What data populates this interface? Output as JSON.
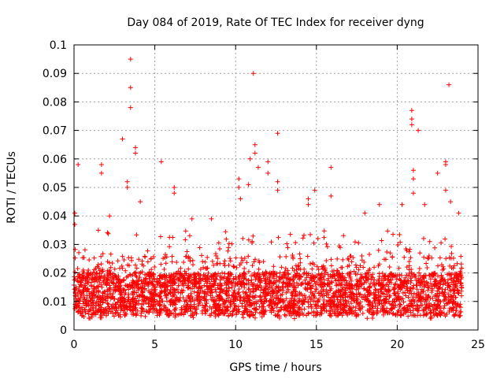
{
  "chart_data": {
    "type": "scatter",
    "title": "Day 084 of 2019, Rate Of TEC Index for receiver dyng",
    "xlabel": "GPS time / hours",
    "ylabel": "ROTI / TECUs",
    "xlim": [
      0,
      25
    ],
    "ylim": [
      0,
      0.1
    ],
    "grid": true,
    "marker": "+",
    "series_color": "#ff0000",
    "x_ticks": [
      0,
      5,
      10,
      15,
      20,
      25
    ],
    "x_tick_labels": [
      "0",
      "5",
      "10",
      "15",
      "20",
      "25"
    ],
    "y_ticks": [
      0,
      0.01,
      0.02,
      0.03,
      0.04,
      0.05,
      0.06,
      0.07,
      0.08,
      0.09,
      0.1
    ],
    "y_tick_labels": [
      "0",
      "0.01",
      "0.02",
      "0.03",
      "0.04",
      "0.05",
      "0.06",
      "0.07",
      "0.08",
      "0.09",
      "0.1"
    ],
    "data_range_x": [
      0,
      24
    ],
    "baseline_band": [
      0.005,
      0.02
    ],
    "outliers": [
      {
        "x": 0.05,
        "y": 0.041
      },
      {
        "x": 0.05,
        "y": 0.037
      },
      {
        "x": 0.25,
        "y": 0.058
      },
      {
        "x": 1.7,
        "y": 0.058
      },
      {
        "x": 1.7,
        "y": 0.055
      },
      {
        "x": 2.2,
        "y": 0.04
      },
      {
        "x": 3.0,
        "y": 0.067
      },
      {
        "x": 3.3,
        "y": 0.052
      },
      {
        "x": 3.3,
        "y": 0.05
      },
      {
        "x": 3.5,
        "y": 0.095
      },
      {
        "x": 3.5,
        "y": 0.085
      },
      {
        "x": 3.5,
        "y": 0.078
      },
      {
        "x": 3.8,
        "y": 0.064
      },
      {
        "x": 3.8,
        "y": 0.062
      },
      {
        "x": 4.1,
        "y": 0.045
      },
      {
        "x": 5.4,
        "y": 0.059
      },
      {
        "x": 6.2,
        "y": 0.05
      },
      {
        "x": 6.2,
        "y": 0.048
      },
      {
        "x": 7.3,
        "y": 0.039
      },
      {
        "x": 8.5,
        "y": 0.039
      },
      {
        "x": 10.2,
        "y": 0.053
      },
      {
        "x": 10.2,
        "y": 0.05
      },
      {
        "x": 10.3,
        "y": 0.046
      },
      {
        "x": 10.8,
        "y": 0.051
      },
      {
        "x": 10.9,
        "y": 0.06
      },
      {
        "x": 11.1,
        "y": 0.09
      },
      {
        "x": 11.2,
        "y": 0.065
      },
      {
        "x": 11.2,
        "y": 0.062
      },
      {
        "x": 11.4,
        "y": 0.057
      },
      {
        "x": 12.0,
        "y": 0.059
      },
      {
        "x": 12.0,
        "y": 0.055
      },
      {
        "x": 12.6,
        "y": 0.069
      },
      {
        "x": 12.6,
        "y": 0.052
      },
      {
        "x": 12.6,
        "y": 0.049
      },
      {
        "x": 14.5,
        "y": 0.046
      },
      {
        "x": 14.5,
        "y": 0.044
      },
      {
        "x": 14.9,
        "y": 0.049
      },
      {
        "x": 15.9,
        "y": 0.057
      },
      {
        "x": 15.9,
        "y": 0.047
      },
      {
        "x": 18.0,
        "y": 0.041
      },
      {
        "x": 18.9,
        "y": 0.044
      },
      {
        "x": 20.3,
        "y": 0.044
      },
      {
        "x": 20.9,
        "y": 0.077
      },
      {
        "x": 20.9,
        "y": 0.074
      },
      {
        "x": 20.9,
        "y": 0.072
      },
      {
        "x": 21.0,
        "y": 0.056
      },
      {
        "x": 21.0,
        "y": 0.053
      },
      {
        "x": 21.0,
        "y": 0.048
      },
      {
        "x": 21.3,
        "y": 0.07
      },
      {
        "x": 21.7,
        "y": 0.044
      },
      {
        "x": 22.5,
        "y": 0.055
      },
      {
        "x": 23.0,
        "y": 0.059
      },
      {
        "x": 23.0,
        "y": 0.058
      },
      {
        "x": 23.0,
        "y": 0.049
      },
      {
        "x": 23.2,
        "y": 0.086
      },
      {
        "x": 23.3,
        "y": 0.045
      },
      {
        "x": 23.8,
        "y": 0.041
      }
    ]
  }
}
